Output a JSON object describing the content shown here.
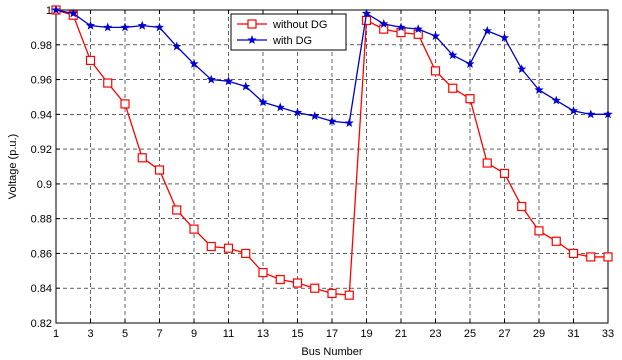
{
  "chart_data": {
    "type": "line",
    "xlabel": "Bus Number",
    "ylabel": "Voltage (p.u.)",
    "xlim": [
      1,
      33
    ],
    "ylim": [
      0.82,
      1.0
    ],
    "xticks": [
      1,
      3,
      5,
      7,
      9,
      11,
      13,
      15,
      17,
      19,
      21,
      23,
      25,
      27,
      29,
      31,
      33
    ],
    "yticks": [
      0.82,
      0.84,
      0.86,
      0.88,
      0.9,
      0.92,
      0.94,
      0.96,
      0.98,
      1
    ],
    "ytick_labels": [
      "0.82",
      "0.84",
      "0.86",
      "0.88",
      "0.9",
      "0.92",
      "0.94",
      "0.96",
      "0.98",
      "1"
    ],
    "grid": true,
    "grid_style": "dashed",
    "legend_position": "top-center",
    "x": [
      1,
      2,
      3,
      4,
      5,
      6,
      7,
      8,
      9,
      10,
      11,
      12,
      13,
      14,
      15,
      16,
      17,
      18,
      19,
      20,
      21,
      22,
      23,
      24,
      25,
      26,
      27,
      28,
      29,
      30,
      31,
      32,
      33
    ],
    "series": [
      {
        "name": "without DG",
        "color": "#ff0000",
        "marker": "square",
        "values": [
          1.0,
          0.997,
          0.971,
          0.958,
          0.946,
          0.915,
          0.908,
          0.885,
          0.874,
          0.864,
          0.863,
          0.86,
          0.849,
          0.845,
          0.843,
          0.84,
          0.837,
          0.836,
          0.994,
          0.989,
          0.987,
          0.986,
          0.965,
          0.955,
          0.949,
          0.912,
          0.906,
          0.887,
          0.873,
          0.867,
          0.86,
          0.858,
          0.858
        ]
      },
      {
        "name": "with DG",
        "color": "#0000cc",
        "marker": "star",
        "values": [
          1.0,
          0.998,
          0.991,
          0.99,
          0.99,
          0.991,
          0.99,
          0.979,
          0.969,
          0.96,
          0.959,
          0.956,
          0.947,
          0.944,
          0.941,
          0.939,
          0.936,
          0.935,
          0.998,
          0.992,
          0.99,
          0.989,
          0.985,
          0.974,
          0.969,
          0.988,
          0.984,
          0.966,
          0.954,
          0.948,
          0.942,
          0.94,
          0.94
        ]
      }
    ]
  }
}
